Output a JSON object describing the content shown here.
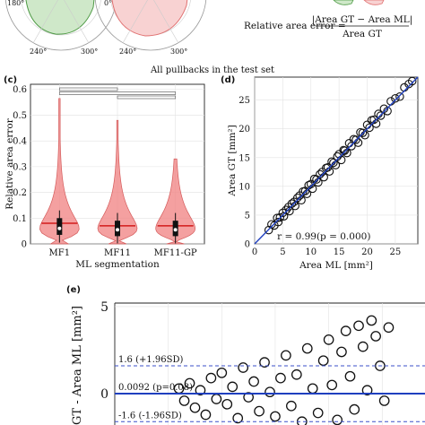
{
  "title": "All pullbacks in the test set",
  "formula": {
    "lhs": "Relative area error =",
    "numerator": "|Area GT − Area ML|",
    "denominator": "Area GT"
  },
  "panel_top_labels": {
    "polar_a_180": "180°",
    "polar_a_0": "0°",
    "polar_a_240": "240°",
    "polar_a_300": "300°",
    "polar_b_240": "240°",
    "polar_b_300": "300°"
  },
  "chart_data": [
    {
      "panel": "(c)",
      "type": "violin",
      "ylabel": "Relative area error",
      "xlabel": "ML segmentation",
      "categories": [
        "MF1",
        "MF11",
        "MF11-GP"
      ],
      "ylim": [
        0,
        0.62
      ],
      "yticks": [
        "0",
        "0.1",
        "0.2",
        "0.3",
        "0.4",
        "0.5",
        "0.6"
      ],
      "violin_max": [
        0.565,
        0.48,
        0.33
      ],
      "medians": [
        0.06,
        0.055,
        0.055
      ],
      "means": [
        0.08,
        0.07,
        0.07
      ],
      "q1": [
        0.035,
        0.03,
        0.03
      ],
      "q3": [
        0.1,
        0.09,
        0.09
      ],
      "violin_color": "#f08080",
      "mean_line_color": "#cc0000",
      "significance_brackets": [
        [
          0,
          1
        ],
        [
          0,
          2
        ],
        [
          1,
          2
        ]
      ],
      "grid": true
    },
    {
      "panel": "(d)",
      "type": "scatter",
      "xlabel": "Area ML [mm²]",
      "ylabel": "Area GT [mm²]",
      "xlim": [
        0,
        29
      ],
      "ylim": [
        0,
        29
      ],
      "xticks": [
        "0",
        "5",
        "10",
        "15",
        "20",
        "25"
      ],
      "yticks": [
        "0",
        "5",
        "10",
        "15",
        "20",
        "25"
      ],
      "annotation": "r = 0.99(p = 0.000)",
      "marker": "open-circle",
      "fit_line_color": "#1f3fbf",
      "points": [
        [
          2.5,
          2.4
        ],
        [
          3,
          3.4
        ],
        [
          3.5,
          3.2
        ],
        [
          4,
          4.5
        ],
        [
          4.2,
          3.8
        ],
        [
          4.5,
          4.6
        ],
        [
          5,
          5.4
        ],
        [
          5.2,
          4.8
        ],
        [
          5.6,
          5.9
        ],
        [
          6,
          6.4
        ],
        [
          6.2,
          5.7
        ],
        [
          6.6,
          7
        ],
        [
          7,
          7.3
        ],
        [
          7.2,
          6.6
        ],
        [
          7.6,
          8
        ],
        [
          8,
          8.4
        ],
        [
          8.3,
          7.6
        ],
        [
          8.6,
          9.1
        ],
        [
          9,
          9.2
        ],
        [
          9.3,
          8.7
        ],
        [
          9.6,
          10.2
        ],
        [
          10,
          10.4
        ],
        [
          10.3,
          9.6
        ],
        [
          10.6,
          11.3
        ],
        [
          11,
          11.2
        ],
        [
          11.3,
          10.7
        ],
        [
          11.6,
          12.1
        ],
        [
          12,
          12.5
        ],
        [
          12.3,
          11.6
        ],
        [
          12.7,
          13.2
        ],
        [
          13,
          13.3
        ],
        [
          13.3,
          12.6
        ],
        [
          13.7,
          14.3
        ],
        [
          14,
          14.1
        ],
        [
          14.4,
          13.7
        ],
        [
          14.7,
          15.2
        ],
        [
          15,
          15.6
        ],
        [
          15.4,
          14.6
        ],
        [
          15.8,
          16.3
        ],
        [
          16,
          16.2
        ],
        [
          16.4,
          15.8
        ],
        [
          16.8,
          17.5
        ],
        [
          17.2,
          17
        ],
        [
          17.6,
          18.2
        ],
        [
          18,
          18.1
        ],
        [
          18.4,
          17.6
        ],
        [
          18.8,
          19.4
        ],
        [
          19.2,
          19.3
        ],
        [
          19.6,
          18.9
        ],
        [
          20,
          20.7
        ],
        [
          20.4,
          20.2
        ],
        [
          20.8,
          21.5
        ],
        [
          21.2,
          21.6
        ],
        [
          21.6,
          20.9
        ],
        [
          22,
          22.6
        ],
        [
          22.4,
          22.3
        ],
        [
          23,
          23.5
        ],
        [
          23.6,
          23.1
        ],
        [
          24.2,
          24.8
        ],
        [
          25,
          25.3
        ],
        [
          25.8,
          25.6
        ],
        [
          26.6,
          27.2
        ],
        [
          27.4,
          27.8
        ],
        [
          28,
          28.3
        ]
      ]
    },
    {
      "panel": "(e)",
      "type": "scatter",
      "subtype": "bland-altman",
      "ylabel": "GT - Area ML [mm²]",
      "ylim": [
        -2.1,
        5.2
      ],
      "yticks": [
        "0",
        "5"
      ],
      "xlim": [
        0,
        29
      ],
      "mean_line": {
        "value": 0.0092,
        "label": "0.0092 (p=0.08)",
        "color": "#1f3fbf"
      },
      "upper_loa": {
        "value": 1.6,
        "label": "1.6 (+1.96SD)",
        "color": "#3a4fc8"
      },
      "lower_loa": {
        "value": -1.6,
        "label": "-1.6 (-1.96SD)",
        "color": "#3a4fc8"
      },
      "marker": "open-circle",
      "points": [
        [
          6,
          0.3
        ],
        [
          6.5,
          -0.4
        ],
        [
          7,
          0.6
        ],
        [
          7.5,
          -0.8
        ],
        [
          8,
          0.2
        ],
        [
          8.5,
          -1.2
        ],
        [
          9,
          0.9
        ],
        [
          9.5,
          -0.3
        ],
        [
          10,
          1.2
        ],
        [
          10.5,
          -0.6
        ],
        [
          11,
          0.4
        ],
        [
          11.5,
          -1.4
        ],
        [
          12,
          1.5
        ],
        [
          12.5,
          -0.2
        ],
        [
          13,
          0.7
        ],
        [
          13.5,
          -1.0
        ],
        [
          14,
          1.8
        ],
        [
          14.5,
          0.1
        ],
        [
          15,
          -1.3
        ],
        [
          15.5,
          0.9
        ],
        [
          16,
          2.2
        ],
        [
          16.5,
          -0.7
        ],
        [
          17,
          1.1
        ],
        [
          17.5,
          -1.6
        ],
        [
          18,
          2.6
        ],
        [
          18.5,
          0.3
        ],
        [
          19,
          -1.1
        ],
        [
          19.5,
          1.9
        ],
        [
          20,
          3.1
        ],
        [
          20.3,
          0.5
        ],
        [
          20.8,
          -1.5
        ],
        [
          21.2,
          2.4
        ],
        [
          21.6,
          3.6
        ],
        [
          22,
          1.0
        ],
        [
          22.4,
          -0.9
        ],
        [
          22.8,
          3.9
        ],
        [
          23.2,
          2.7
        ],
        [
          23.6,
          0.2
        ],
        [
          24,
          4.2
        ],
        [
          24.4,
          3.3
        ],
        [
          24.8,
          1.6
        ],
        [
          25.2,
          -0.4
        ],
        [
          25.6,
          3.8
        ]
      ]
    }
  ]
}
